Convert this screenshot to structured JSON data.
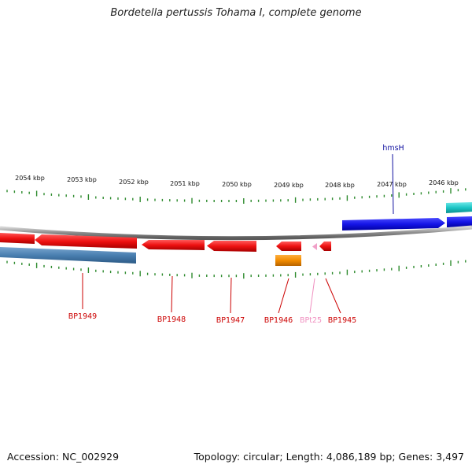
{
  "title": "Bordetella pertussis Tohama I, complete genome",
  "footer": {
    "accession": "Accession: NC_002929",
    "summary": "Topology: circular; Length: 4,086,189 bp; Genes: 3,497"
  },
  "kbp_labels": [
    "2054 kbp",
    "2053 kbp",
    "2052 kbp",
    "2051 kbp",
    "2050 kbp",
    "2049 kbp",
    "2048 kbp",
    "2047 kbp",
    "2046 kbp"
  ],
  "gene_labels": [
    {
      "text": "BP1949",
      "color": "#cc0000"
    },
    {
      "text": "BP1948",
      "color": "#cc0000"
    },
    {
      "text": "BP1947",
      "color": "#cc0000"
    },
    {
      "text": "BP1946",
      "color": "#cc0000"
    },
    {
      "text": "BPt25",
      "color": "#f090c0"
    },
    {
      "text": "BP1945",
      "color": "#cc0000"
    },
    {
      "text": "hmsH",
      "color": "#1010a0"
    }
  ],
  "colors": {
    "tick": "#2e8b2e",
    "backbone": "#8c8c8c",
    "cds_minus": "#ee1111",
    "cds_plus": "#1414e6",
    "gene_minus": "#4a7fb0",
    "trna": "#f0a0c8",
    "rrna_like": "#f28c00",
    "cyan_feature": "#1cc6c6"
  }
}
